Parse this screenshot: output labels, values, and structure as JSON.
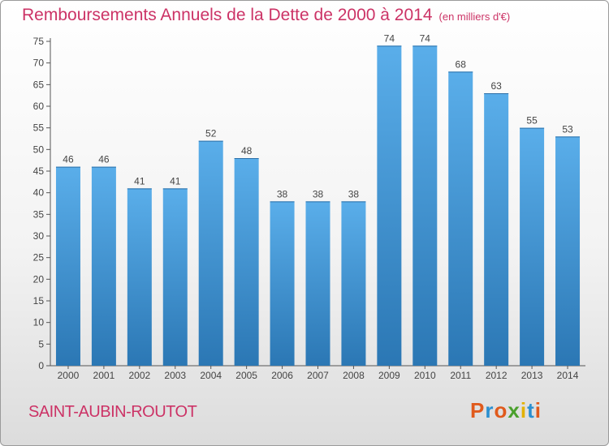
{
  "header": {
    "title": "Remboursements Annuels de la Dette de 2000 à 2014",
    "unit": "(en milliers d'€)"
  },
  "footer": {
    "commune": "SAINT-AUBIN-ROUTOT",
    "logo_letters": [
      "P",
      "r",
      "o",
      "x",
      "i",
      "t",
      "i"
    ],
    "logo_colors": [
      "#e05a1c",
      "#2a8fd0",
      "#e05a1c",
      "#4aa02c",
      "#e3b100",
      "#2a8fd0",
      "#e05a1c"
    ]
  },
  "colors": {
    "title": "#cc3366",
    "bar_top": "#5aaeea",
    "bar_bottom": "#2b77b4"
  },
  "chart_data": {
    "type": "bar",
    "categories": [
      "2000",
      "2001",
      "2002",
      "2003",
      "2004",
      "2005",
      "2006",
      "2007",
      "2008",
      "2009",
      "2010",
      "2011",
      "2012",
      "2013",
      "2014"
    ],
    "values": [
      46,
      46,
      41,
      41,
      52,
      48,
      38,
      38,
      38,
      74,
      74,
      68,
      63,
      55,
      53
    ],
    "yticks": [
      0,
      5,
      10,
      15,
      20,
      25,
      30,
      35,
      40,
      45,
      50,
      55,
      60,
      65,
      70,
      75
    ],
    "ylim": [
      0,
      75
    ],
    "grid": false,
    "title": "Remboursements Annuels de la Dette de 2000 à 2014",
    "xlabel": "",
    "ylabel": ""
  }
}
